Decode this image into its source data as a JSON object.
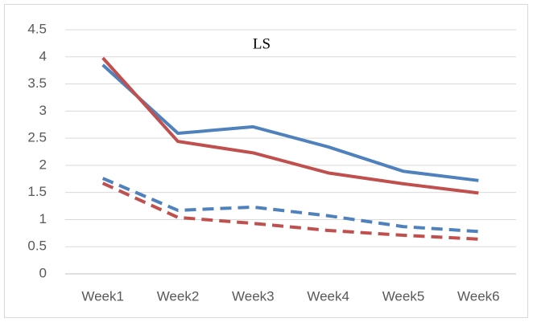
{
  "chart_data": {
    "type": "line",
    "title": "LS",
    "categories": [
      "Week1",
      "Week2",
      "Week3",
      "Week4",
      "Week5",
      "Week6"
    ],
    "series": [
      {
        "color": "#4f81bd",
        "dashed": false,
        "values": [
          3.85,
          2.59,
          2.71,
          2.34,
          1.89,
          1.72
        ]
      },
      {
        "color": "#c0504d",
        "dashed": false,
        "values": [
          3.98,
          2.44,
          2.23,
          1.86,
          1.66,
          1.49
        ]
      },
      {
        "color": "#4f81bd",
        "dashed": true,
        "values": [
          1.76,
          1.17,
          1.23,
          1.07,
          0.87,
          0.78
        ]
      },
      {
        "color": "#c0504d",
        "dashed": true,
        "values": [
          1.67,
          1.04,
          0.93,
          0.8,
          0.71,
          0.64
        ]
      }
    ],
    "ylim": [
      0,
      4.5
    ],
    "yticks": [
      0,
      0.5,
      1,
      1.5,
      2,
      2.5,
      3,
      3.5,
      4,
      4.5
    ],
    "grid": true
  }
}
